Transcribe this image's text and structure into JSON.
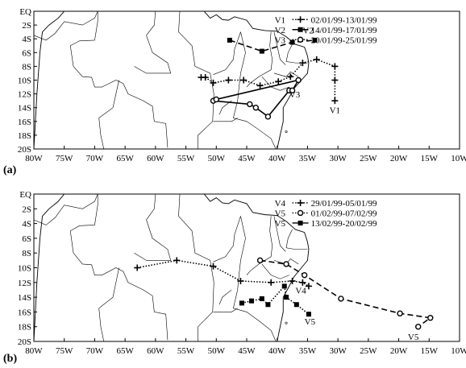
{
  "panels": [
    {
      "id": "a",
      "letter": "(a)",
      "y_ticks": [
        "EQ",
        "2S",
        "4S",
        "6S",
        "8S",
        "10S",
        "12S",
        "14S",
        "16S",
        "18S",
        "20S"
      ],
      "x_ticks": [
        "80W",
        "75W",
        "70W",
        "65W",
        "60W",
        "55W",
        "50W",
        "45W",
        "40W",
        "35W",
        "30W",
        "25W",
        "20W",
        "15W",
        "10W"
      ],
      "legend": [
        {
          "label": "V1",
          "dates": "02/01/99-13/01/99",
          "marker": "plus"
        },
        {
          "label": "V2",
          "dates": "14/01/99-17/01/99",
          "marker": "square"
        },
        {
          "label": "V3",
          "dates": "20/01/99-25/01/99",
          "marker": "circle"
        }
      ],
      "tracks": [
        {
          "name": "V1",
          "style": "dotted",
          "marker": "plus",
          "points": [
            [
              -30.5,
              -13.0
            ],
            [
              -30.5,
              -10.0
            ],
            [
              -30.5,
              -8.0
            ],
            [
              -33.5,
              -7.0
            ],
            [
              -35.8,
              -7.5
            ],
            [
              -37.8,
              -9.5
            ],
            [
              -39.8,
              -10.2
            ],
            [
              -42.8,
              -10.8
            ],
            [
              -45.5,
              -10.0
            ],
            [
              -48.0,
              -10.0
            ],
            [
              -50.5,
              -10.4
            ],
            [
              -51.8,
              -9.6
            ],
            [
              -52.5,
              -9.6
            ]
          ],
          "label": "V1",
          "label_at": [
            -31.4,
            -14.8
          ]
        },
        {
          "name": "V2",
          "style": "dashed",
          "marker": "square",
          "points": [
            [
              -47.8,
              -4.2
            ],
            [
              -42.5,
              -5.8
            ],
            [
              -37.5,
              -4.5
            ],
            [
              -33.8,
              -4.2
            ]
          ],
          "label": "V2",
          "label_at": [
            -35.8,
            -3.2
          ]
        },
        {
          "name": "V3",
          "style": "solid",
          "marker": "circle",
          "points": [
            [
              -50.5,
              -13.0
            ],
            [
              -44.5,
              -13.5
            ],
            [
              -43.5,
              -14.0
            ],
            [
              -41.5,
              -15.3
            ],
            [
              -38.0,
              -11.5
            ],
            [
              -37.5,
              -11.5
            ],
            [
              -36.5,
              -10.0
            ],
            [
              -50.0,
              -12.8
            ]
          ],
          "label": "V3",
          "label_at": [
            -38.0,
            -12.5
          ]
        }
      ]
    },
    {
      "id": "b",
      "letter": "(b)",
      "y_ticks": [
        "EQ",
        "2S",
        "4S",
        "6S",
        "8S",
        "10S",
        "12S",
        "14S",
        "16S",
        "18S",
        "20S"
      ],
      "x_ticks": [
        "80W",
        "75W",
        "70W",
        "65W",
        "60W",
        "55W",
        "50W",
        "45W",
        "40W",
        "35W",
        "30W",
        "25W",
        "20W",
        "15W",
        "10W"
      ],
      "legend": [
        {
          "label": "V4",
          "dates": "29/01/99-05/01/99",
          "marker": "plus"
        },
        {
          "label": "V5",
          "dates": "01/02/99-07/02/99",
          "marker": "circle"
        },
        {
          "label": "V5",
          "dates": "13/02/99-20/02/99",
          "marker": "square"
        }
      ],
      "tracks": [
        {
          "name": "V4",
          "style": "dotted",
          "marker": "plus",
          "points": [
            [
              -63.0,
              -10.0
            ],
            [
              -56.5,
              -9.0
            ],
            [
              -50.5,
              -9.8
            ],
            [
              -46.0,
              -11.8
            ],
            [
              -41.0,
              -12.0
            ],
            [
              -37.5,
              -11.8
            ],
            [
              -35.8,
              -12.0
            ],
            [
              -34.8,
              -12.5
            ]
          ],
          "label": "V4",
          "label_at": [
            -37.0,
            -13.5
          ]
        },
        {
          "name": "V5a",
          "style": "dashed",
          "marker": "circle",
          "points": [
            [
              -42.8,
              -9.0
            ],
            [
              -38.5,
              -9.5
            ],
            [
              -35.5,
              -11.0
            ],
            [
              -29.5,
              -14.2
            ],
            [
              -19.8,
              -16.2
            ],
            [
              -14.8,
              -16.8
            ],
            [
              -16.8,
              -18.0
            ]
          ],
          "label": "V5",
          "label_at": [
            -18.5,
            -19.8
          ]
        },
        {
          "name": "V5b",
          "style": "dotted",
          "marker": "square",
          "points": [
            [
              -45.8,
              -14.8
            ],
            [
              -44.2,
              -14.5
            ],
            [
              -42.5,
              -14.2
            ],
            [
              -41.5,
              -15.0
            ],
            [
              -38.8,
              -12.5
            ],
            [
              -38.5,
              -14.0
            ],
            [
              -36.8,
              -15.0
            ],
            [
              -34.8,
              -16.3
            ]
          ],
          "label": "V5",
          "label_at": [
            -35.5,
            -17.7
          ]
        }
      ]
    }
  ]
}
